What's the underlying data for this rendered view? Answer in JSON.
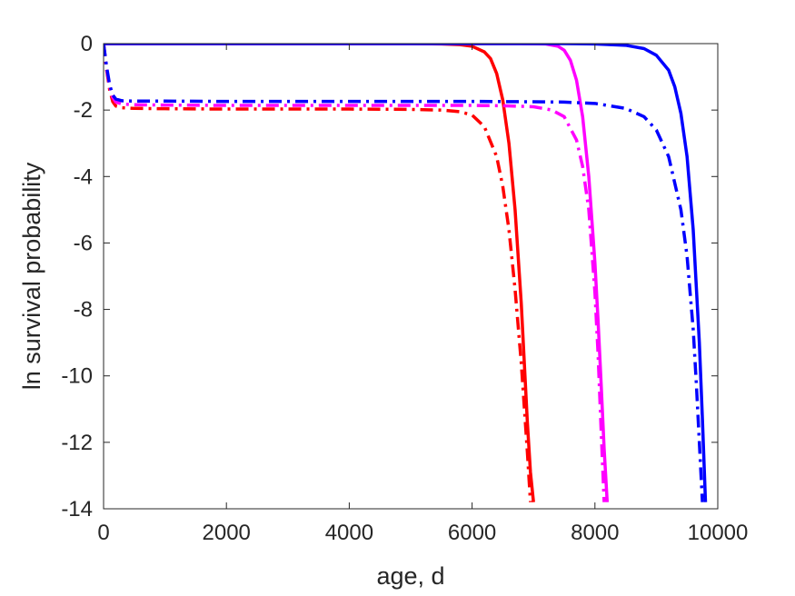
{
  "chart_data": {
    "type": "line",
    "title": "",
    "xlabel": "age, d",
    "ylabel": "ln survival probability",
    "xlim": [
      0,
      10000
    ],
    "ylim": [
      -14,
      0
    ],
    "xticks": [
      0,
      2000,
      4000,
      6000,
      8000,
      10000
    ],
    "xtick_labels": [
      "0",
      "2000",
      "4000",
      "6000",
      "8000",
      "10000"
    ],
    "yticks": [
      0,
      -2,
      -4,
      -6,
      -8,
      -10,
      -12,
      -14
    ],
    "ytick_labels": [
      "0",
      "-2",
      "-4",
      "-6",
      "-8",
      "-10",
      "-12",
      "-14"
    ],
    "grid": false,
    "legend": "none",
    "series": [
      {
        "color": "#ff0000",
        "style": "solid",
        "x": [
          0,
          1000,
          2000,
          3000,
          4000,
          5000,
          5500,
          5800,
          6000,
          6200,
          6300,
          6400,
          6500,
          6600,
          6700,
          6800,
          6850,
          6900,
          6950,
          7000
        ],
        "y": [
          0,
          0,
          0,
          0,
          0,
          0,
          -0.01,
          -0.03,
          -0.08,
          -0.25,
          -0.45,
          -0.9,
          -1.7,
          -3.0,
          -5.0,
          -7.8,
          -9.6,
          -11.4,
          -12.9,
          -13.8
        ]
      },
      {
        "color": "#ff0000",
        "style": "dashdot",
        "x": [
          0,
          50,
          100,
          150,
          200,
          300,
          500,
          1000,
          2000,
          3000,
          4000,
          5000,
          5500,
          5800,
          6000,
          6200,
          6400,
          6500,
          6600,
          6700,
          6800,
          6900,
          6950
        ],
        "y": [
          0,
          -0.8,
          -1.4,
          -1.75,
          -1.88,
          -1.93,
          -1.95,
          -1.96,
          -1.97,
          -1.97,
          -1.97,
          -1.98,
          -2.0,
          -2.05,
          -2.15,
          -2.5,
          -3.4,
          -4.3,
          -5.6,
          -7.4,
          -9.6,
          -12.3,
          -13.8
        ]
      },
      {
        "color": "#ff00ff",
        "style": "solid",
        "x": [
          0,
          2000,
          4000,
          6000,
          6800,
          7200,
          7400,
          7500,
          7600,
          7700,
          7800,
          7900,
          8000,
          8050,
          8100,
          8150,
          8200
        ],
        "y": [
          0,
          0,
          0,
          0,
          0,
          -0.01,
          -0.08,
          -0.2,
          -0.5,
          -1.1,
          -2.2,
          -4.0,
          -6.6,
          -8.3,
          -10.2,
          -12.2,
          -13.8
        ]
      },
      {
        "color": "#ff00ff",
        "style": "dashdot",
        "x": [
          0,
          50,
          100,
          150,
          200,
          300,
          500,
          1000,
          2000,
          4000,
          6000,
          6500,
          7000,
          7300,
          7500,
          7700,
          7800,
          7900,
          8000,
          8050,
          8100,
          8150
        ],
        "y": [
          0,
          -0.75,
          -1.3,
          -1.62,
          -1.76,
          -1.82,
          -1.84,
          -1.85,
          -1.86,
          -1.86,
          -1.86,
          -1.87,
          -1.9,
          -2.0,
          -2.2,
          -2.9,
          -3.7,
          -5.0,
          -7.5,
          -9.3,
          -11.6,
          -13.8
        ]
      },
      {
        "color": "#0000ff",
        "style": "solid",
        "x": [
          0,
          2000,
          4000,
          6000,
          7000,
          7500,
          8000,
          8500,
          8800,
          9000,
          9200,
          9300,
          9400,
          9500,
          9600,
          9700,
          9750,
          9800
        ],
        "y": [
          0,
          0,
          0,
          0,
          0,
          0,
          -0.01,
          -0.05,
          -0.15,
          -0.35,
          -0.8,
          -1.3,
          -2.1,
          -3.4,
          -5.6,
          -9.0,
          -11.3,
          -13.8
        ]
      },
      {
        "color": "#0000ff",
        "style": "dashdot",
        "x": [
          0,
          50,
          100,
          150,
          200,
          300,
          500,
          1000,
          2000,
          4000,
          6000,
          7000,
          7500,
          8000,
          8500,
          8800,
          9000,
          9200,
          9400,
          9500,
          9600,
          9650,
          9700,
          9750
        ],
        "y": [
          0,
          -0.7,
          -1.25,
          -1.55,
          -1.67,
          -1.72,
          -1.73,
          -1.73,
          -1.74,
          -1.74,
          -1.74,
          -1.75,
          -1.76,
          -1.8,
          -1.95,
          -2.2,
          -2.6,
          -3.4,
          -5.0,
          -6.4,
          -8.6,
          -10.2,
          -12.0,
          -13.8
        ]
      }
    ]
  }
}
